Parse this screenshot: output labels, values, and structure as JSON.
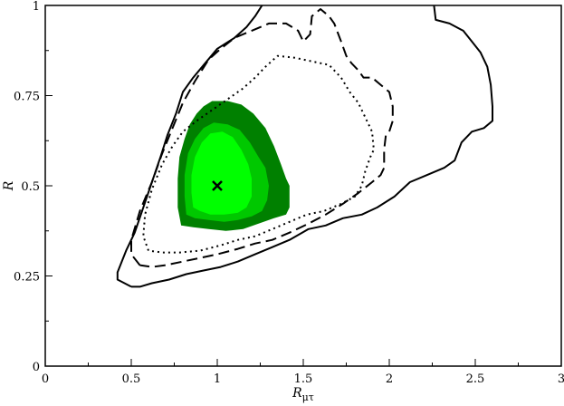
{
  "chart_data": {
    "type": "contour",
    "title": "",
    "xlabel": "R",
    "xlabel_sub": "μτ",
    "ylabel": "R",
    "xlim": [
      0,
      3
    ],
    "ylim": [
      0,
      1
    ],
    "x_ticks": [
      {
        "value": 0,
        "label": "0"
      },
      {
        "value": 0.5,
        "label": "0.5"
      },
      {
        "value": 1,
        "label": "1"
      },
      {
        "value": 1.5,
        "label": "1.5"
      },
      {
        "value": 2,
        "label": "2"
      },
      {
        "value": 2.5,
        "label": "2.5"
      },
      {
        "value": 3,
        "label": "3"
      }
    ],
    "y_ticks": [
      {
        "value": 0,
        "label": "0"
      },
      {
        "value": 0.25,
        "label": "0.25"
      },
      {
        "value": 0.5,
        "label": "0.5"
      },
      {
        "value": 0.75,
        "label": "0.75"
      },
      {
        "value": 1,
        "label": "1"
      }
    ],
    "best_fit": {
      "x": 1.0,
      "y": 0.5,
      "marker": "x"
    },
    "filled_regions": [
      {
        "color": "#008000",
        "points": [
          [
            0.79,
            0.39
          ],
          [
            0.77,
            0.44
          ],
          [
            0.77,
            0.52
          ],
          [
            0.78,
            0.58
          ],
          [
            0.81,
            0.63
          ],
          [
            0.84,
            0.67
          ],
          [
            0.88,
            0.7
          ],
          [
            0.92,
            0.72
          ],
          [
            0.97,
            0.735
          ],
          [
            1.06,
            0.735
          ],
          [
            1.14,
            0.725
          ],
          [
            1.21,
            0.7
          ],
          [
            1.28,
            0.66
          ],
          [
            1.33,
            0.61
          ],
          [
            1.37,
            0.56
          ],
          [
            1.4,
            0.52
          ],
          [
            1.42,
            0.5
          ],
          [
            1.42,
            0.44
          ],
          [
            1.4,
            0.42
          ],
          [
            1.33,
            0.41
          ],
          [
            1.27,
            0.4
          ],
          [
            1.21,
            0.39
          ],
          [
            1.15,
            0.38
          ],
          [
            1.05,
            0.375
          ],
          [
            0.95,
            0.38
          ],
          [
            0.86,
            0.385
          ]
        ]
      },
      {
        "color": "#00c800",
        "points": [
          [
            0.82,
            0.42
          ],
          [
            0.81,
            0.47
          ],
          [
            0.81,
            0.53
          ],
          [
            0.83,
            0.59
          ],
          [
            0.87,
            0.63
          ],
          [
            0.92,
            0.66
          ],
          [
            0.98,
            0.675
          ],
          [
            1.06,
            0.67
          ],
          [
            1.13,
            0.655
          ],
          [
            1.19,
            0.62
          ],
          [
            1.24,
            0.58
          ],
          [
            1.28,
            0.55
          ],
          [
            1.3,
            0.5
          ],
          [
            1.29,
            0.46
          ],
          [
            1.26,
            0.43
          ],
          [
            1.2,
            0.415
          ],
          [
            1.12,
            0.405
          ],
          [
            1.04,
            0.4
          ],
          [
            0.95,
            0.405
          ],
          [
            0.87,
            0.41
          ]
        ]
      },
      {
        "color": "#00ff00",
        "points": [
          [
            0.86,
            0.44
          ],
          [
            0.85,
            0.48
          ],
          [
            0.85,
            0.53
          ],
          [
            0.87,
            0.58
          ],
          [
            0.91,
            0.62
          ],
          [
            0.96,
            0.645
          ],
          [
            1.03,
            0.65
          ],
          [
            1.09,
            0.635
          ],
          [
            1.14,
            0.6
          ],
          [
            1.18,
            0.56
          ],
          [
            1.2,
            0.52
          ],
          [
            1.2,
            0.47
          ],
          [
            1.17,
            0.44
          ],
          [
            1.12,
            0.425
          ],
          [
            1.04,
            0.42
          ],
          [
            0.96,
            0.42
          ],
          [
            0.9,
            0.43
          ]
        ]
      }
    ],
    "contours": [
      {
        "style": "dotted",
        "points": [
          [
            0.6,
            0.32
          ],
          [
            0.57,
            0.36
          ],
          [
            0.58,
            0.42
          ],
          [
            0.62,
            0.49
          ],
          [
            0.68,
            0.56
          ],
          [
            0.74,
            0.61
          ],
          [
            0.8,
            0.65
          ],
          [
            0.88,
            0.68
          ],
          [
            0.97,
            0.71
          ],
          [
            1.06,
            0.74
          ],
          [
            1.15,
            0.77
          ],
          [
            1.22,
            0.8
          ],
          [
            1.28,
            0.83
          ],
          [
            1.35,
            0.86
          ],
          [
            1.45,
            0.855
          ],
          [
            1.55,
            0.845
          ],
          [
            1.65,
            0.835
          ],
          [
            1.72,
            0.8
          ],
          [
            1.77,
            0.76
          ],
          [
            1.82,
            0.73
          ],
          [
            1.86,
            0.69
          ],
          [
            1.9,
            0.65
          ],
          [
            1.91,
            0.6
          ],
          [
            1.89,
            0.58
          ],
          [
            1.86,
            0.54
          ],
          [
            1.84,
            0.5
          ],
          [
            1.8,
            0.47
          ],
          [
            1.72,
            0.45
          ],
          [
            1.62,
            0.43
          ],
          [
            1.52,
            0.42
          ],
          [
            1.42,
            0.4
          ],
          [
            1.32,
            0.38
          ],
          [
            1.22,
            0.36
          ],
          [
            1.12,
            0.35
          ],
          [
            1.02,
            0.335
          ],
          [
            0.9,
            0.32
          ],
          [
            0.78,
            0.315
          ],
          [
            0.68,
            0.315
          ],
          [
            0.6,
            0.32
          ]
        ]
      },
      {
        "style": "dashed",
        "points": [
          [
            0.55,
            0.28
          ],
          [
            0.5,
            0.31
          ],
          [
            0.5,
            0.35
          ],
          [
            0.55,
            0.43
          ],
          [
            0.62,
            0.51
          ],
          [
            0.68,
            0.59
          ],
          [
            0.74,
            0.66
          ],
          [
            0.8,
            0.73
          ],
          [
            0.87,
            0.79
          ],
          [
            0.95,
            0.85
          ],
          [
            1.02,
            0.88
          ],
          [
            1.1,
            0.91
          ],
          [
            1.2,
            0.93
          ],
          [
            1.3,
            0.95
          ],
          [
            1.4,
            0.95
          ],
          [
            1.47,
            0.93
          ],
          [
            1.5,
            0.9
          ],
          [
            1.54,
            0.92
          ],
          [
            1.55,
            0.97
          ],
          [
            1.6,
            0.99
          ],
          [
            1.65,
            0.97
          ],
          [
            1.68,
            0.95
          ],
          [
            1.72,
            0.9
          ],
          [
            1.75,
            0.86
          ],
          [
            1.78,
            0.84
          ],
          [
            1.82,
            0.82
          ],
          [
            1.85,
            0.8
          ],
          [
            1.9,
            0.8
          ],
          [
            1.95,
            0.78
          ],
          [
            2.0,
            0.76
          ],
          [
            2.02,
            0.72
          ],
          [
            2.02,
            0.68
          ],
          [
            2.0,
            0.65
          ],
          [
            1.98,
            0.64
          ],
          [
            1.97,
            0.6
          ],
          [
            1.97,
            0.55
          ],
          [
            1.95,
            0.53
          ],
          [
            1.9,
            0.51
          ],
          [
            1.82,
            0.48
          ],
          [
            1.73,
            0.45
          ],
          [
            1.63,
            0.42
          ],
          [
            1.53,
            0.395
          ],
          [
            1.42,
            0.37
          ],
          [
            1.32,
            0.35
          ],
          [
            1.22,
            0.34
          ],
          [
            1.12,
            0.325
          ],
          [
            1.0,
            0.31
          ],
          [
            0.9,
            0.3
          ],
          [
            0.8,
            0.29
          ],
          [
            0.7,
            0.28
          ],
          [
            0.62,
            0.275
          ],
          [
            0.55,
            0.28
          ]
        ]
      },
      {
        "style": "solid",
        "points": [
          [
            0.5,
            0.22
          ],
          [
            0.42,
            0.24
          ],
          [
            0.42,
            0.26
          ],
          [
            0.47,
            0.32
          ],
          [
            0.52,
            0.37
          ],
          [
            0.57,
            0.44
          ],
          [
            0.62,
            0.51
          ],
          [
            0.67,
            0.58
          ],
          [
            0.71,
            0.64
          ],
          [
            0.76,
            0.7
          ],
          [
            0.8,
            0.76
          ],
          [
            0.86,
            0.8
          ],
          [
            0.93,
            0.84
          ],
          [
            1.0,
            0.88
          ],
          [
            1.1,
            0.91
          ],
          [
            1.17,
            0.94
          ],
          [
            1.22,
            0.97
          ],
          [
            1.26,
            1.0
          ]
        ]
      },
      {
        "style": "solid",
        "points": [
          [
            2.26,
            1.0
          ],
          [
            2.27,
            0.96
          ],
          [
            2.35,
            0.95
          ],
          [
            2.43,
            0.93
          ],
          [
            2.48,
            0.9
          ],
          [
            2.53,
            0.87
          ],
          [
            2.57,
            0.83
          ],
          [
            2.59,
            0.78
          ],
          [
            2.6,
            0.72
          ],
          [
            2.6,
            0.68
          ],
          [
            2.55,
            0.66
          ],
          [
            2.48,
            0.65
          ],
          [
            2.42,
            0.62
          ],
          [
            2.38,
            0.57
          ],
          [
            2.32,
            0.55
          ],
          [
            2.22,
            0.53
          ],
          [
            2.12,
            0.51
          ],
          [
            2.03,
            0.47
          ],
          [
            1.93,
            0.44
          ],
          [
            1.84,
            0.42
          ],
          [
            1.73,
            0.41
          ],
          [
            1.63,
            0.39
          ],
          [
            1.53,
            0.38
          ],
          [
            1.42,
            0.35
          ],
          [
            1.32,
            0.33
          ],
          [
            1.22,
            0.31
          ],
          [
            1.12,
            0.29
          ],
          [
            1.02,
            0.275
          ],
          [
            0.92,
            0.265
          ],
          [
            0.82,
            0.255
          ],
          [
            0.72,
            0.24
          ],
          [
            0.62,
            0.23
          ],
          [
            0.55,
            0.22
          ],
          [
            0.5,
            0.22
          ]
        ]
      }
    ]
  }
}
